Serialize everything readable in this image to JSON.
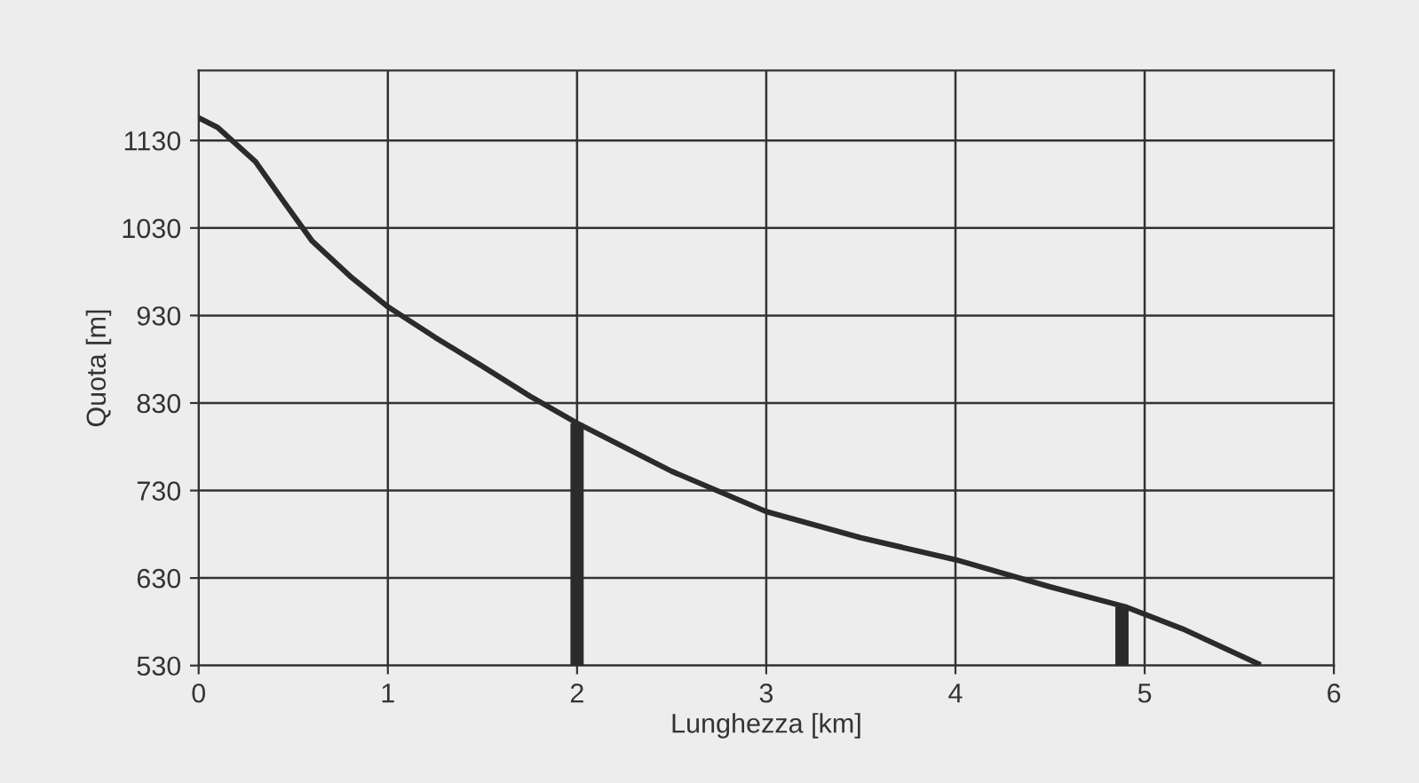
{
  "chart_data": {
    "type": "line",
    "xlabel": "Lunghezza [km]",
    "ylabel": "Quota [m]",
    "xlim": [
      0,
      6
    ],
    "xticks": [
      0,
      1,
      2,
      3,
      4,
      5,
      6
    ],
    "ylim": [
      530,
      1210
    ],
    "yticks": [
      530,
      630,
      730,
      830,
      930,
      1030,
      1130
    ],
    "grid": true,
    "legend": false,
    "marker": "none",
    "line_style": "solid",
    "series": [
      {
        "color": "#2b2b2b",
        "x": [
          0,
          0.1,
          0.3,
          0.45,
          0.6,
          0.8,
          1,
          1.25,
          1.5,
          1.75,
          2,
          2.5,
          3,
          3.5,
          4,
          4.5,
          4.9,
          5.2,
          5.4,
          5.6
        ],
        "values": [
          1156,
          1145,
          1106,
          1060,
          1015,
          975,
          940,
          905,
          872,
          838,
          807,
          752,
          706,
          676,
          651,
          620,
          597,
          572,
          552,
          532
        ]
      },
      {
        "type": "bar",
        "color": "#2b2b2b",
        "x": [
          2,
          4.88
        ],
        "base": [
          530,
          530
        ],
        "values": [
          277,
          67
        ]
      }
    ]
  }
}
